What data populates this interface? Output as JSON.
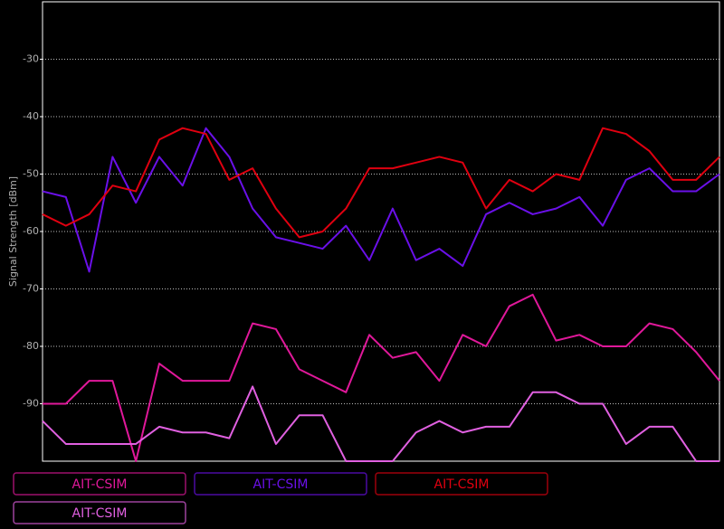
{
  "chart_data": {
    "type": "line",
    "y_label": "Signal Strength [dBm]",
    "ylim": [
      -100,
      -20
    ],
    "yticks": [
      -90,
      -80,
      -70,
      -60,
      -50,
      -40,
      -30
    ],
    "grid": true,
    "series": [
      {
        "name": "AIT-CSIM",
        "color": "#e0189a",
        "values": [
          -90,
          -90,
          -86,
          -86,
          -100,
          -83,
          -86,
          -86,
          -86,
          -76,
          -77,
          -84,
          -86,
          -88,
          -78,
          -82,
          -81,
          -86,
          -78,
          -80,
          -73,
          -71,
          -79,
          -78,
          -80,
          -80,
          -76,
          -77,
          -81,
          -86
        ]
      },
      {
        "name": "AIT-CSIM",
        "color": "#6a10e8",
        "values": [
          -53,
          -54,
          -67,
          -47,
          -55,
          -47,
          -52,
          -42,
          -47,
          -56,
          -61,
          -62,
          -63,
          -59,
          -65,
          -56,
          -65,
          -63,
          -66,
          -57,
          -55,
          -57,
          -56,
          -54,
          -59,
          -51,
          -49,
          -53,
          -53,
          -50
        ]
      },
      {
        "name": "AIT-CSIM",
        "color": "#e00010",
        "values": [
          -57,
          -59,
          -57,
          -52,
          -53,
          -44,
          -42,
          -43,
          -51,
          -49,
          -56,
          -61,
          -60,
          -56,
          -49,
          -49,
          -48,
          -47,
          -48,
          -56,
          -51,
          -53,
          -50,
          -51,
          -42,
          -43,
          -46,
          -51,
          -51,
          -47
        ]
      },
      {
        "name": "AIT-CSIM",
        "color": "#e060e0",
        "values": [
          -93,
          -97,
          -97,
          -97,
          -97,
          -94,
          -95,
          -95,
          -96,
          -87,
          -97,
          -92,
          -92,
          -100,
          -100,
          -100,
          -95,
          -93,
          -95,
          -94,
          -94,
          -88,
          -88,
          -90,
          -90,
          -97,
          -94,
          -94,
          -100,
          -100
        ]
      }
    ]
  }
}
